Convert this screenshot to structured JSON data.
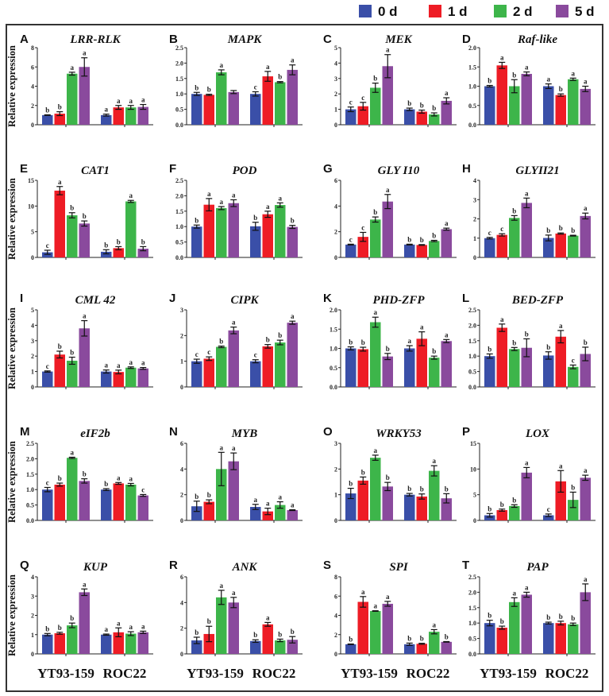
{
  "legend": [
    {
      "label": "0 d",
      "color": "#3a4fa8"
    },
    {
      "label": "1 d",
      "color": "#ee1c25"
    },
    {
      "label": "2 d",
      "color": "#3db54a"
    },
    {
      "label": "5 d",
      "color": "#8a4a9d"
    }
  ],
  "chart_data": {
    "type": "bar",
    "ylabel": "Relative expression",
    "categories": [
      "YT93-159",
      "ROC22"
    ],
    "series_names": [
      "0 d",
      "1 d",
      "2 d",
      "5 d"
    ],
    "panels": [
      {
        "letter": "A",
        "title": "LRR-RLK",
        "ymax": 8,
        "ystep": 2,
        "values": [
          [
            1,
            1.15,
            5.3,
            6
          ],
          [
            1,
            1.8,
            1.8,
            1.85
          ]
        ],
        "errors": [
          [
            0.03,
            0.2,
            0.15,
            0.95
          ],
          [
            0.1,
            0.2,
            0.2,
            0.25
          ]
        ],
        "letters": [
          [
            "b",
            "b",
            "a",
            "a"
          ],
          [
            "a",
            "a",
            "a",
            "a"
          ]
        ]
      },
      {
        "letter": "B",
        "title": "MAPK",
        "ymax": 2.5,
        "ystep": 0.5,
        "values": [
          [
            1,
            0.97,
            1.7,
            1.06
          ],
          [
            1,
            1.57,
            1.38,
            1.78
          ]
        ],
        "errors": [
          [
            0.05,
            0.02,
            0.08,
            0.05
          ],
          [
            0.07,
            0.16,
            0.02,
            0.16
          ]
        ],
        "letters": [
          [
            "b",
            "b",
            "a",
            ""
          ],
          [
            "c",
            "a",
            "b",
            "a"
          ]
        ]
      },
      {
        "letter": "C",
        "title": "MEK",
        "ymax": 5,
        "ystep": 1,
        "values": [
          [
            1,
            1.2,
            2.4,
            3.8
          ],
          [
            1,
            0.85,
            0.67,
            1.55
          ]
        ],
        "errors": [
          [
            0.15,
            0.25,
            0.3,
            0.75
          ],
          [
            0.08,
            0.1,
            0.1,
            0.2
          ]
        ],
        "letters": [
          [
            "c",
            "c",
            "b",
            "a"
          ],
          [
            "b",
            "b",
            "b",
            "a"
          ]
        ]
      },
      {
        "letter": "D",
        "title": "Raf-like",
        "ymax": 2,
        "ystep": 0.5,
        "values": [
          [
            1,
            1.54,
            1,
            1.32
          ],
          [
            1,
            0.77,
            1.18,
            0.93
          ]
        ],
        "errors": [
          [
            0.02,
            0.08,
            0.17,
            0.05
          ],
          [
            0.06,
            0.03,
            0.03,
            0.07
          ]
        ],
        "letters": [
          [
            "b",
            "a",
            "b",
            "a"
          ],
          [
            "a",
            "b",
            "a",
            "a"
          ]
        ]
      },
      {
        "letter": "E",
        "title": "CAT1",
        "ymax": 15,
        "ystep": 5,
        "values": [
          [
            1,
            13,
            8.2,
            6.6
          ],
          [
            1.1,
            1.8,
            10.9,
            1.7
          ]
        ],
        "errors": [
          [
            0.4,
            0.8,
            0.5,
            0.5
          ],
          [
            0.4,
            0.3,
            0.2,
            0.4
          ]
        ],
        "letters": [
          [
            "c",
            "a",
            "b",
            "b"
          ],
          [
            "b",
            "b",
            "a",
            "b"
          ]
        ]
      },
      {
        "letter": "F",
        "title": "POD",
        "ymax": 2.5,
        "ystep": 0.5,
        "values": [
          [
            1,
            1.71,
            1.6,
            1.76
          ],
          [
            1.01,
            1.4,
            1.7,
            0.99
          ]
        ],
        "errors": [
          [
            0.05,
            0.2,
            0.05,
            0.11
          ],
          [
            0.13,
            0.1,
            0.07,
            0.05
          ]
        ],
        "letters": [
          [
            "b",
            "a",
            "a",
            "a"
          ],
          [
            "b",
            "a",
            "a",
            "b"
          ]
        ]
      },
      {
        "letter": "G",
        "title": "GLY I10",
        "ymax": 6,
        "ystep": 2,
        "values": [
          [
            1,
            1.6,
            2.95,
            4.35
          ],
          [
            1,
            0.97,
            1.28,
            2.2
          ]
        ],
        "errors": [
          [
            0.03,
            0.35,
            0.2,
            0.55
          ],
          [
            0.03,
            0.03,
            0.05,
            0.08
          ]
        ],
        "letters": [
          [
            "c",
            "c",
            "b",
            "a"
          ],
          [
            "b",
            "b",
            "b",
            "a"
          ]
        ]
      },
      {
        "letter": "H",
        "title": "GLYII21",
        "ymax": 4,
        "ystep": 1,
        "values": [
          [
            1,
            1.17,
            2.05,
            2.83
          ],
          [
            1.01,
            1.24,
            1.13,
            2.15
          ]
        ],
        "errors": [
          [
            0.04,
            0.06,
            0.12,
            0.25
          ],
          [
            0.15,
            0.03,
            0.02,
            0.15
          ]
        ],
        "letters": [
          [
            "c",
            "c",
            "b",
            "a"
          ],
          [
            "b",
            "b",
            "b",
            "a"
          ]
        ]
      },
      {
        "letter": "I",
        "title": "CML 42",
        "ymax": 5,
        "ystep": 1,
        "values": [
          [
            1,
            2.1,
            1.7,
            3.8
          ],
          [
            1,
            0.97,
            1.25,
            1.2
          ]
        ],
        "errors": [
          [
            0.04,
            0.22,
            0.23,
            0.5
          ],
          [
            0.1,
            0.12,
            0.05,
            0.06
          ]
        ],
        "letters": [
          [
            "c",
            "b",
            "b",
            "a"
          ],
          [
            "a",
            "a",
            "a",
            "a"
          ]
        ]
      },
      {
        "letter": "J",
        "title": "CIPK",
        "ymax": 3,
        "ystep": 1,
        "values": [
          [
            1,
            1.1,
            1.56,
            2.2
          ],
          [
            1,
            1.58,
            1.73,
            2.5
          ]
        ],
        "errors": [
          [
            0.08,
            0.07,
            0.03,
            0.13
          ],
          [
            0.06,
            0.07,
            0.09,
            0.06
          ]
        ],
        "letters": [
          [
            "c",
            "c",
            "b",
            "a"
          ],
          [
            "c",
            "b",
            "b",
            "a"
          ]
        ]
      },
      {
        "letter": "K",
        "title": "PHD-ZFP",
        "ymax": 2,
        "ystep": 0.5,
        "values": [
          [
            1,
            0.98,
            1.68,
            0.79
          ],
          [
            1,
            1.25,
            0.76,
            1.19
          ]
        ],
        "errors": [
          [
            0.04,
            0.05,
            0.13,
            0.08
          ],
          [
            0.07,
            0.18,
            0.04,
            0.04
          ]
        ],
        "letters": [
          [
            "b",
            "b",
            "a",
            "b"
          ],
          [
            "a",
            "a",
            "b",
            "a"
          ]
        ]
      },
      {
        "letter": "L",
        "title": "BED-ZFP",
        "ymax": 2.5,
        "ystep": 0.5,
        "values": [
          [
            1,
            1.92,
            1.23,
            1.27
          ],
          [
            1.02,
            1.63,
            0.65,
            1.07
          ]
        ],
        "errors": [
          [
            0.07,
            0.12,
            0.05,
            0.29
          ],
          [
            0.12,
            0.2,
            0.06,
            0.22
          ]
        ],
        "letters": [
          [
            "b",
            "a",
            "b",
            "b"
          ],
          [
            "b",
            "a",
            "c",
            "b"
          ]
        ]
      },
      {
        "letter": "M",
        "title": "eIF2b",
        "ymax": 2.5,
        "ystep": 0.5,
        "values": [
          [
            1,
            1.16,
            2.03,
            1.28
          ],
          [
            1,
            1.2,
            1.16,
            0.81
          ]
        ],
        "errors": [
          [
            0.07,
            0.05,
            0.02,
            0.07
          ],
          [
            0.03,
            0.03,
            0.04,
            0.03
          ]
        ],
        "letters": [
          [
            "c",
            "b",
            "a",
            "b"
          ],
          [
            "b",
            "a",
            "a",
            "c"
          ]
        ]
      },
      {
        "letter": "N",
        "title": "MYB",
        "ymax": 6,
        "ystep": 2,
        "values": [
          [
            1.1,
            1.45,
            4,
            4.6
          ],
          [
            1.05,
            0.7,
            1.2,
            0.8
          ]
        ],
        "errors": [
          [
            0.4,
            0.15,
            1.3,
            0.65
          ],
          [
            0.2,
            0.25,
            0.25,
            0.03
          ]
        ],
        "letters": [
          [
            "b",
            "b",
            "a",
            "a"
          ],
          [
            "a",
            "a",
            "a",
            "a"
          ]
        ]
      },
      {
        "letter": "O",
        "title": "WRKY53",
        "ymax": 3,
        "ystep": 1,
        "values": [
          [
            1.05,
            1.55,
            2.44,
            1.32
          ],
          [
            1,
            0.93,
            1.93,
            0.86
          ]
        ],
        "errors": [
          [
            0.2,
            0.14,
            0.1,
            0.16
          ],
          [
            0.05,
            0.1,
            0.2,
            0.18
          ]
        ],
        "letters": [
          [
            "b",
            "b",
            "a",
            "b"
          ],
          [
            "b",
            "b",
            "a",
            "b"
          ]
        ]
      },
      {
        "letter": "P",
        "title": "LOX",
        "ymax": 15,
        "ystep": 5,
        "values": [
          [
            1,
            2,
            2.8,
            9.3
          ],
          [
            1,
            7.6,
            4,
            8.3
          ]
        ],
        "errors": [
          [
            0.35,
            0.2,
            0.25,
            1
          ],
          [
            0.25,
            2.1,
            1.5,
            0.5
          ]
        ],
        "letters": [
          [
            "b",
            "b",
            "b",
            "a"
          ],
          [
            "c",
            "a",
            "b",
            "a"
          ]
        ]
      },
      {
        "letter": "Q",
        "title": "KUP",
        "ymax": 4,
        "ystep": 1,
        "values": [
          [
            1,
            1.07,
            1.48,
            3.2
          ],
          [
            1,
            1.12,
            1.05,
            1.12
          ]
        ],
        "errors": [
          [
            0.06,
            0.05,
            0.12,
            0.17
          ],
          [
            0.03,
            0.23,
            0.1,
            0.06
          ]
        ],
        "letters": [
          [
            "b",
            "b",
            "b",
            "a"
          ],
          [
            "a",
            "a",
            "a",
            "a"
          ]
        ]
      },
      {
        "letter": "R",
        "title": "ANK",
        "ymax": 6,
        "ystep": 2,
        "values": [
          [
            1.05,
            1.55,
            4.4,
            4
          ],
          [
            1,
            2.3,
            1.05,
            1.1
          ]
        ],
        "errors": [
          [
            0.25,
            0.6,
            0.55,
            0.4
          ],
          [
            0.1,
            0.15,
            0.1,
            0.25
          ]
        ],
        "letters": [
          [
            "b",
            "b",
            "a",
            "a"
          ],
          [
            "b",
            "a",
            "b",
            "b"
          ]
        ]
      },
      {
        "letter": "S",
        "title": "SPI",
        "ymax": 8,
        "ystep": 2,
        "values": [
          [
            1,
            5.4,
            4.45,
            5.2
          ],
          [
            1,
            1.05,
            2.3,
            1.25
          ]
        ],
        "errors": [
          [
            0.03,
            0.55,
            0.03,
            0.25
          ],
          [
            0.12,
            0.05,
            0.22,
            0.03
          ]
        ],
        "letters": [
          [
            "b",
            "a",
            "a",
            "a"
          ],
          [
            "b",
            "b",
            "a",
            "b"
          ]
        ]
      },
      {
        "letter": "T",
        "title": "PAP",
        "ymax": 2.5,
        "ystep": 0.5,
        "values": [
          [
            1,
            0.85,
            1.68,
            1.92
          ],
          [
            1,
            1,
            0.96,
            2
          ]
        ],
        "errors": [
          [
            0.09,
            0.05,
            0.14,
            0.08
          ],
          [
            0.03,
            0.06,
            0.04,
            0.27
          ]
        ],
        "letters": [
          [
            "b",
            "b",
            "a",
            "a"
          ],
          [
            "b",
            "b",
            "b",
            "a"
          ]
        ]
      }
    ]
  }
}
